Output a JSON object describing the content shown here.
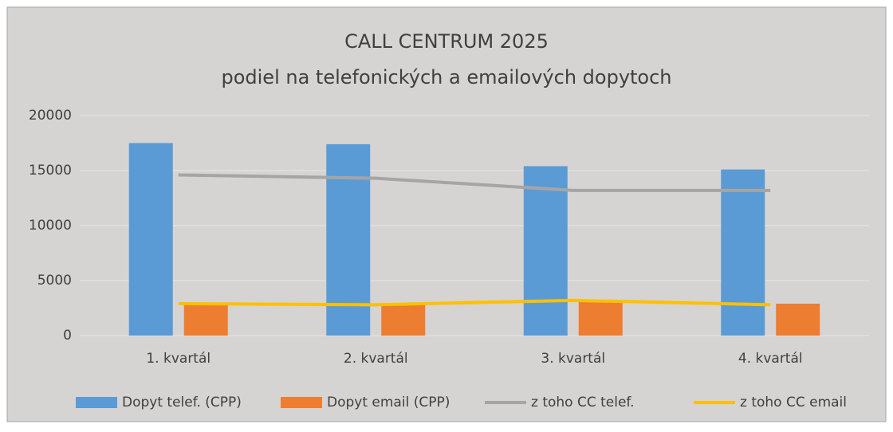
{
  "chart_data": {
    "type": "combo",
    "title": "CALL CENTRUM 2025",
    "subtitle": "podiel na telefonických a emailových dopytoch",
    "categories": [
      "1. kvartál",
      "2. kvartál",
      "3. kvartál",
      "4. kvartál"
    ],
    "series": [
      {
        "name": "Dopyt telef. (CPP)",
        "kind": "bar",
        "color": "#5b9bd5",
        "values": [
          17500,
          17400,
          15400,
          15100
        ]
      },
      {
        "name": "Dopyt email (CPP)",
        "kind": "bar",
        "color": "#ed7d31",
        "values": [
          2900,
          2800,
          3100,
          2900
        ]
      },
      {
        "name": "z toho CC telef.",
        "kind": "line",
        "color": "#a5a5a5",
        "values": [
          14600,
          14300,
          13200,
          13200
        ]
      },
      {
        "name": "z toho CC email",
        "kind": "line",
        "color": "#ffc000",
        "values": [
          2900,
          2800,
          3200,
          2800
        ]
      }
    ],
    "ylim": [
      0,
      20000
    ],
    "yticks": [
      0,
      5000,
      10000,
      15000,
      20000
    ],
    "grid": true,
    "legend": "bottom"
  }
}
